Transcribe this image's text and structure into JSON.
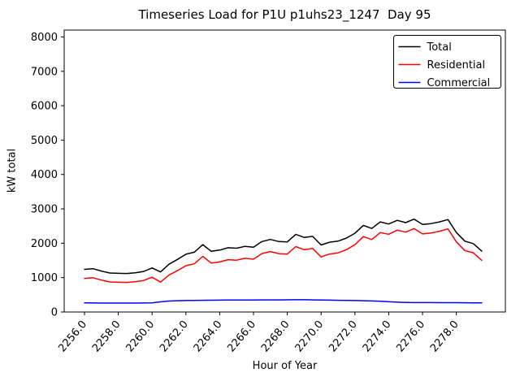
{
  "window": {
    "background": "#ffffff"
  },
  "chart_data": {
    "type": "line",
    "title": "Timeseries Load for P1U p1uhs23_1247  Day 95",
    "xlabel": "Hour of Year",
    "ylabel": "kW total",
    "grid": false,
    "legend_position": "upper right",
    "xlim": [
      2254.8,
      2280.9
    ],
    "ylim": [
      0,
      8200
    ],
    "yticks": [
      {
        "value": 0,
        "label": "0"
      },
      {
        "value": 1000,
        "label": "1000"
      },
      {
        "value": 2000,
        "label": "2000"
      },
      {
        "value": 3000,
        "label": "3000"
      },
      {
        "value": 4000,
        "label": "4000"
      },
      {
        "value": 5000,
        "label": "5000"
      },
      {
        "value": 6000,
        "label": "6000"
      },
      {
        "value": 7000,
        "label": "7000"
      },
      {
        "value": 8000,
        "label": "8000"
      }
    ],
    "xticks": [
      {
        "value": 2256,
        "label": "2256.0"
      },
      {
        "value": 2258,
        "label": "2258.0"
      },
      {
        "value": 2260,
        "label": "2260.0"
      },
      {
        "value": 2262,
        "label": "2262.0"
      },
      {
        "value": 2264,
        "label": "2264.0"
      },
      {
        "value": 2266,
        "label": "2266.0"
      },
      {
        "value": 2268,
        "label": "2268.0"
      },
      {
        "value": 2270,
        "label": "2270.0"
      },
      {
        "value": 2272,
        "label": "2272.0"
      },
      {
        "value": 2274,
        "label": "2274.0"
      },
      {
        "value": 2276,
        "label": "2276.0"
      },
      {
        "value": 2278,
        "label": "2278.0"
      }
    ],
    "x": [
      2256,
      2256.5,
      2257,
      2257.5,
      2258,
      2258.5,
      2259,
      2259.5,
      2260,
      2260.5,
      2261,
      2261.5,
      2262,
      2262.5,
      2263,
      2263.5,
      2264,
      2264.5,
      2265,
      2265.5,
      2266,
      2266.5,
      2267,
      2267.5,
      2268,
      2268.5,
      2269,
      2269.5,
      2270,
      2270.5,
      2271,
      2271.5,
      2272,
      2272.5,
      2273,
      2273.5,
      2274,
      2274.5,
      2275,
      2275.5,
      2276,
      2276.5,
      2277,
      2277.5,
      2278,
      2278.5,
      2279,
      2279.5
    ],
    "series": [
      {
        "name": "Total",
        "color": "#000000",
        "values": [
          1240,
          1260,
          1190,
          1135,
          1125,
          1120,
          1140,
          1180,
          1280,
          1165,
          1390,
          1530,
          1680,
          1740,
          1960,
          1765,
          1800,
          1870,
          1855,
          1910,
          1885,
          2050,
          2110,
          2050,
          2040,
          2260,
          2170,
          2200,
          1950,
          2030,
          2060,
          2150,
          2290,
          2520,
          2430,
          2620,
          2560,
          2665,
          2600,
          2700,
          2545,
          2570,
          2620,
          2690,
          2310,
          2060,
          1990,
          1770
        ]
      },
      {
        "name": "Residential",
        "color": "#ff0000",
        "values": [
          975,
          997,
          929,
          875,
          866,
          861,
          880,
          918,
          1012,
          870,
          1072,
          1202,
          1346,
          1402,
          1619,
          1422,
          1455,
          1523,
          1507,
          1561,
          1535,
          1699,
          1758,
          1697,
          1685,
          1902,
          1813,
          1847,
          1602,
          1686,
          1720,
          1813,
          1957,
          2192,
          2108,
          2308,
          2262,
          2380,
          2322,
          2425,
          2271,
          2297,
          2348,
          2418,
          2039,
          1790,
          1722,
          1504
        ]
      },
      {
        "name": "Commercial",
        "color": "#0000ff",
        "values": [
          265,
          263,
          261,
          260,
          259,
          259,
          260,
          262,
          268,
          295,
          318,
          328,
          334,
          338,
          341,
          343,
          345,
          347,
          348,
          349,
          350,
          351,
          352,
          353,
          355,
          358,
          357,
          353,
          348,
          344,
          340,
          337,
          333,
          328,
          322,
          312,
          298,
          285,
          278,
          275,
          274,
          273,
          272,
          272,
          271,
          270,
          268,
          266
        ]
      }
    ]
  }
}
